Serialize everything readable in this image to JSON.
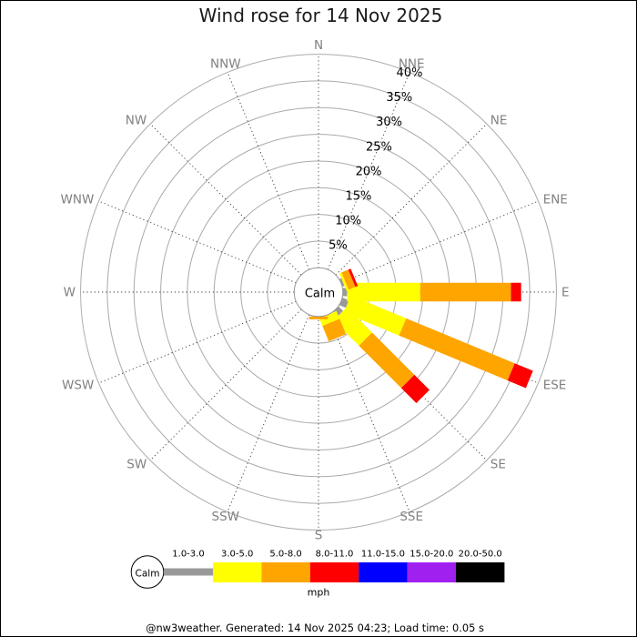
{
  "title": "Wind rose for 14 Nov 2025",
  "footer": "@nw3weather. Generated: 14 Nov 2025 04:23; Load time: 0.05 s",
  "center_label": "Calm",
  "colors": {
    "background": "#ffffff",
    "border": "#000000",
    "ring": "#aaaaaa",
    "spoke": "#333333",
    "calm_circle_stroke": "#808080",
    "compass_label": "#808080",
    "percent_label": "#000000",
    "title": "#1a1a1a",
    "footer": "#000000"
  },
  "chart_data": {
    "type": "wind_rose",
    "title": "Wind rose for 14 Nov 2025",
    "directions": [
      "N",
      "NNE",
      "NE",
      "ENE",
      "E",
      "ESE",
      "SE",
      "SSE",
      "S",
      "SSW",
      "SW",
      "WSW",
      "W",
      "WNW",
      "NW",
      "NNW"
    ],
    "ring_percent_ticks": [
      "5%",
      "10%",
      "15%",
      "20%",
      "25%",
      "30%",
      "35%",
      "40%"
    ],
    "ring_percent_values": [
      5,
      10,
      15,
      20,
      25,
      30,
      35,
      40
    ],
    "speed_bins": [
      {
        "label": "1.0-3.0",
        "color": "#999999"
      },
      {
        "label": "3.0-5.0",
        "color": "#ffff00"
      },
      {
        "label": "5.0-8.0",
        "color": "#ffa500"
      },
      {
        "label": "8.0-11.0",
        "color": "#ff0000"
      },
      {
        "label": "11.0-15.0",
        "color": "#0000ff"
      },
      {
        "label": "15.0-20.0",
        "color": "#a020f0"
      },
      {
        "label": "20.0-50.0",
        "color": "#000000"
      }
    ],
    "unit": "mph",
    "calm_label": "Calm",
    "frequencies_percent": {
      "N": [
        0,
        0,
        0,
        0,
        0,
        0,
        0
      ],
      "NNE": [
        0,
        0,
        0,
        0,
        0,
        0,
        0
      ],
      "NE": [
        0,
        0,
        0,
        0,
        0,
        0,
        0
      ],
      "ENE": [
        0.4,
        0.45,
        1.35,
        0.5,
        0,
        0,
        0
      ],
      "E": [
        0.8,
        13.7,
        17.0,
        1.9,
        0,
        0,
        0
      ],
      "ESE": [
        1.3,
        11.2,
        22.0,
        3.7,
        0,
        0,
        0
      ],
      "SE": [
        1.2,
        6.7,
        11.2,
        4.0,
        0,
        0,
        0
      ],
      "SSE": [
        0,
        1.6,
        3.1,
        0,
        0,
        0,
        0
      ],
      "S": [
        0,
        0,
        0.55,
        0,
        0,
        0,
        0
      ],
      "SSW": [
        0,
        0,
        0,
        0,
        0,
        0,
        0
      ],
      "SW": [
        0,
        0,
        0,
        0,
        0,
        0,
        0
      ],
      "WSW": [
        0,
        0,
        0,
        0,
        0,
        0,
        0
      ],
      "W": [
        0,
        0,
        0,
        0,
        0,
        0,
        0
      ],
      "WNW": [
        0,
        0,
        0,
        0,
        0,
        0,
        0
      ],
      "NW": [
        0,
        0,
        0,
        0,
        0,
        0,
        0
      ],
      "NNW": [
        0,
        0,
        0,
        0,
        0,
        0,
        0
      ]
    }
  },
  "legend": {
    "calm_label": "Calm",
    "unit_label": "mph",
    "entries": [
      {
        "label": "1.0-3.0",
        "color": "#999999"
      },
      {
        "label": "3.0-5.0",
        "color": "#ffff00"
      },
      {
        "label": "5.0-8.0",
        "color": "#ffa500"
      },
      {
        "label": "8.0-11.0",
        "color": "#ff0000"
      },
      {
        "label": "11.0-15.0",
        "color": "#0000ff"
      },
      {
        "label": "15.0-20.0",
        "color": "#a020f0"
      },
      {
        "label": "20.0-50.0",
        "color": "#000000"
      }
    ]
  }
}
